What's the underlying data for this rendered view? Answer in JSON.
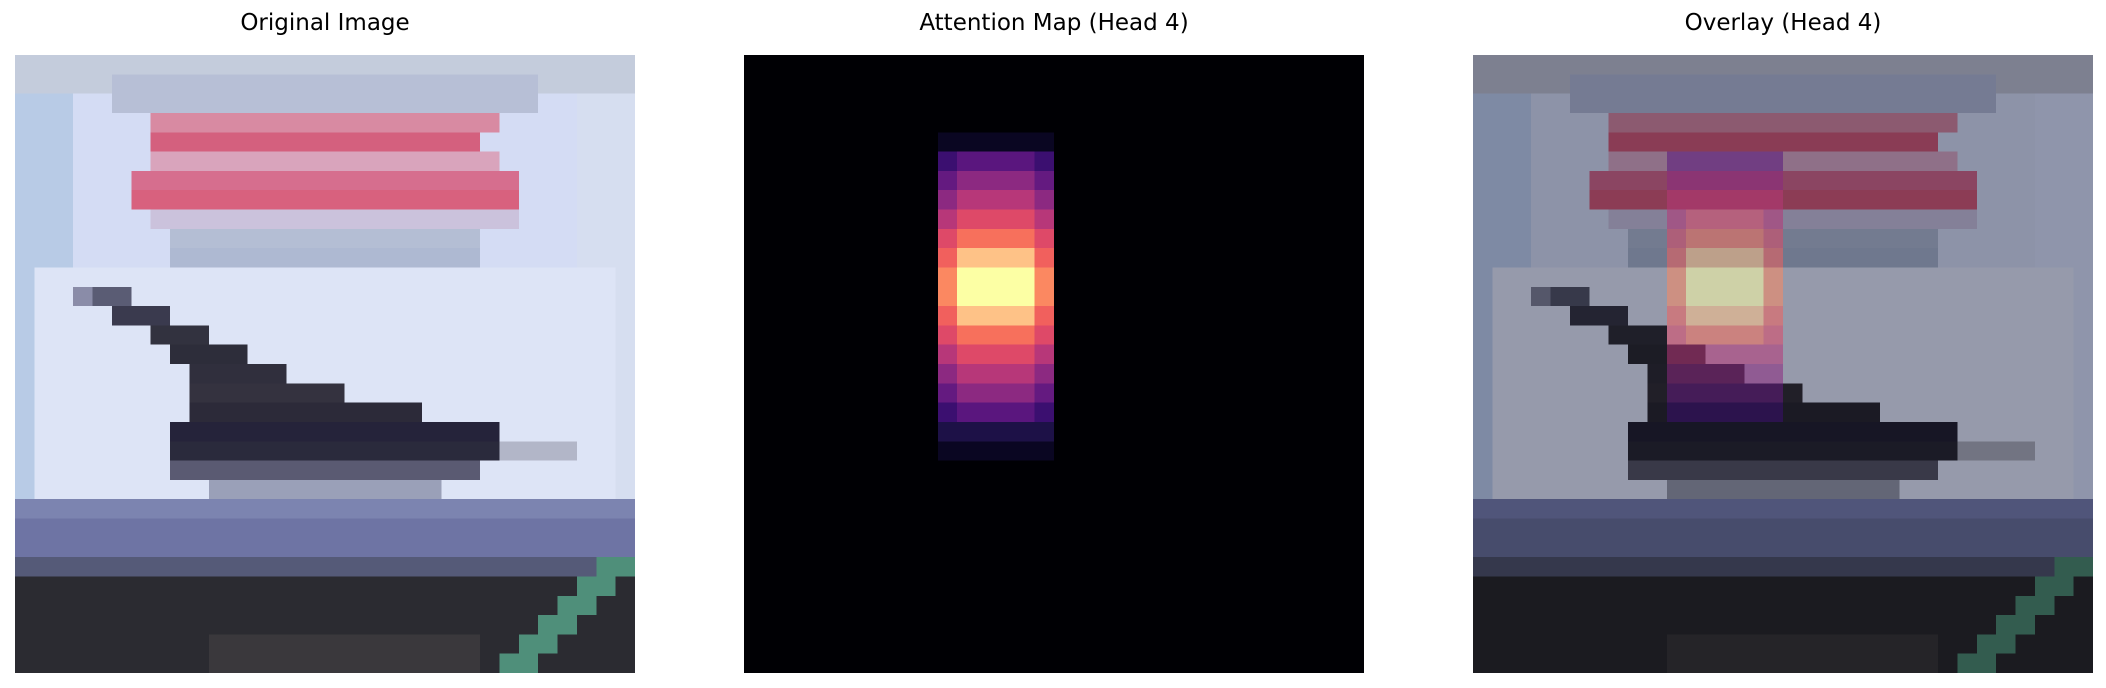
{
  "panels": [
    {
      "title": "Original Image"
    },
    {
      "title": "Attention Map (Head 4)"
    },
    {
      "title": "Overlay (Head 4)"
    }
  ],
  "colors": {
    "background": "#ffffff",
    "attention_background": "#000004",
    "attention_peak": "#fcffa4",
    "sky": "#c8d6f0",
    "sign_text_red": "#d4607a",
    "airplane": "#2a2838",
    "ground": "#2c2c30",
    "accent_green": "#4f8f7a"
  }
}
